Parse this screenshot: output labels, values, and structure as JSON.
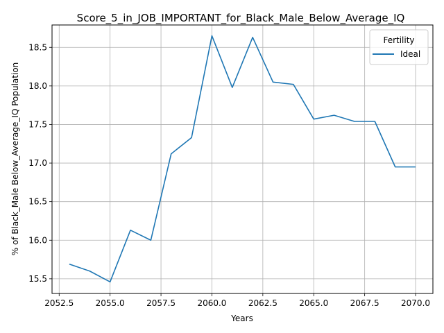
{
  "chart_data": {
    "type": "line",
    "title": "Score_5_in_JOB_IMPORTANT_for_Black_Male_Below_Average_IQ",
    "xlabel": "Years",
    "ylabel": "% of Black_Male Below_Average_IQ Population",
    "xlim": [
      2052.15,
      2070.85
    ],
    "ylim": [
      15.31,
      18.79
    ],
    "xticks": [
      2052.5,
      2055.0,
      2057.5,
      2060.0,
      2062.5,
      2065.0,
      2067.5,
      2070.0
    ],
    "xtick_labels": [
      "2052.5",
      "2055.0",
      "2057.5",
      "2060.0",
      "2062.5",
      "2065.0",
      "2067.5",
      "2070.0"
    ],
    "yticks": [
      15.5,
      16.0,
      16.5,
      17.0,
      17.5,
      18.0,
      18.5
    ],
    "ytick_labels": [
      "15.5",
      "16.0",
      "16.5",
      "17.0",
      "17.5",
      "18.0",
      "18.5"
    ],
    "grid": true,
    "legend": {
      "title": "Fertility",
      "position": "top-right"
    },
    "series": [
      {
        "name": "Ideal",
        "color": "#1f77b4",
        "x": [
          2053,
          2054,
          2055,
          2056,
          2057,
          2058,
          2059,
          2060,
          2061,
          2062,
          2063,
          2064,
          2065,
          2066,
          2067,
          2068,
          2069,
          2070
        ],
        "y": [
          15.69,
          15.6,
          15.46,
          16.13,
          16.0,
          17.12,
          17.33,
          18.65,
          17.98,
          18.63,
          18.05,
          18.02,
          17.57,
          17.62,
          17.54,
          17.54,
          16.95,
          16.95
        ]
      }
    ]
  }
}
